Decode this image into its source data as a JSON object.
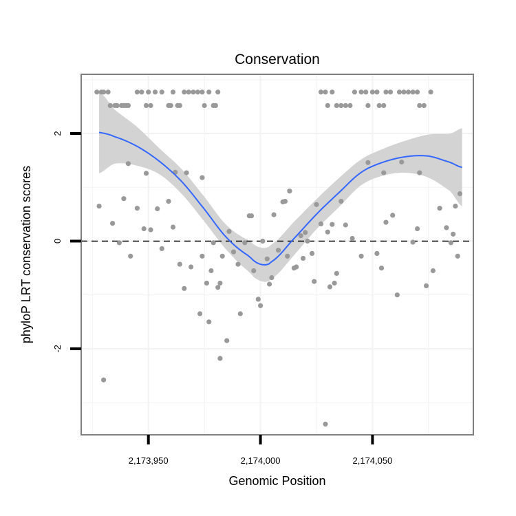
{
  "chart_data": {
    "type": "scatter",
    "title": "Conservation",
    "xlabel": "Genomic Position",
    "ylabel": "phyloP LRT conservation scores",
    "xlim": [
      2173920,
      2174095
    ],
    "ylim": [
      -3.6,
      3.1
    ],
    "x_ticks": [
      {
        "value": 2173950,
        "label": "2,173,950"
      },
      {
        "value": 2174000,
        "label": "2,174,000"
      },
      {
        "value": 2174050,
        "label": "2,174,050"
      }
    ],
    "y_ticks": [
      {
        "value": -2,
        "label": "-2"
      },
      {
        "value": 0,
        "label": "0"
      },
      {
        "value": 2,
        "label": "2"
      }
    ],
    "x_minor_grid": [
      2173925,
      2173975,
      2174025,
      2174075
    ],
    "y_minor_grid": [
      -3,
      -1,
      1,
      3
    ],
    "reference_line": {
      "y": 0,
      "style": "dashed"
    },
    "colors": {
      "points": "#999999",
      "smooth_line": "#3366FF",
      "confidence_band": "#D3D3D3",
      "panel_border": "#7F7F7F",
      "grid": "#F2F2F2",
      "axis_ticks": "#000000"
    },
    "points": [
      [
        2173927,
        2.77
      ],
      [
        2173929,
        2.77
      ],
      [
        2173930,
        2.77
      ],
      [
        2173932,
        2.77
      ],
      [
        2173933,
        2.52
      ],
      [
        2173935,
        2.52
      ],
      [
        2173936,
        2.52
      ],
      [
        2173938,
        2.52
      ],
      [
        2173939,
        2.52
      ],
      [
        2173940,
        2.52
      ],
      [
        2173941,
        2.52
      ],
      [
        2173945,
        2.77
      ],
      [
        2173947,
        2.77
      ],
      [
        2173949,
        2.52
      ],
      [
        2173950,
        2.77
      ],
      [
        2173951,
        2.52
      ],
      [
        2173953,
        2.77
      ],
      [
        2173956,
        2.77
      ],
      [
        2173959,
        2.52
      ],
      [
        2173960,
        2.52
      ],
      [
        2173961,
        2.77
      ],
      [
        2173963,
        2.52
      ],
      [
        2173964,
        2.52
      ],
      [
        2173966,
        2.77
      ],
      [
        2173968,
        2.77
      ],
      [
        2173970,
        2.77
      ],
      [
        2173972,
        2.77
      ],
      [
        2173974,
        2.77
      ],
      [
        2173975,
        2.52
      ],
      [
        2173977,
        2.77
      ],
      [
        2173979,
        2.52
      ],
      [
        2173980,
        2.52
      ],
      [
        2173981,
        2.77
      ],
      [
        2174027,
        2.77
      ],
      [
        2174029,
        2.77
      ],
      [
        2174030,
        2.52
      ],
      [
        2174032,
        2.77
      ],
      [
        2174034,
        2.52
      ],
      [
        2174036,
        2.52
      ],
      [
        2174038,
        2.52
      ],
      [
        2174040,
        2.52
      ],
      [
        2174042,
        2.77
      ],
      [
        2174045,
        2.77
      ],
      [
        2174047,
        2.77
      ],
      [
        2174048,
        2.52
      ],
      [
        2174050,
        2.77
      ],
      [
        2174052,
        2.77
      ],
      [
        2174053,
        2.52
      ],
      [
        2174055,
        2.52
      ],
      [
        2174056,
        2.77
      ],
      [
        2174058,
        2.77
      ],
      [
        2174062,
        2.77
      ],
      [
        2174064,
        2.77
      ],
      [
        2174066,
        2.77
      ],
      [
        2174068,
        2.77
      ],
      [
        2174070,
        2.77
      ],
      [
        2174071,
        2.52
      ],
      [
        2174073,
        2.52
      ],
      [
        2174076,
        2.77
      ],
      [
        2173928,
        0.65
      ],
      [
        2173930,
        -2.58
      ],
      [
        2173934,
        0.33
      ],
      [
        2173937,
        -0.03
      ],
      [
        2173939,
        0.79
      ],
      [
        2173941,
        1.44
      ],
      [
        2173942,
        -0.28
      ],
      [
        2173945,
        0.61
      ],
      [
        2173948,
        0.23
      ],
      [
        2173949,
        1.26
      ],
      [
        2173951,
        0.21
      ],
      [
        2173954,
        0.6
      ],
      [
        2173956,
        -0.14
      ],
      [
        2173959,
        0.74
      ],
      [
        2173961,
        0.26
      ],
      [
        2173962,
        1.28
      ],
      [
        2173964,
        -0.43
      ],
      [
        2173966,
        -0.88
      ],
      [
        2173967,
        1.27
      ],
      [
        2173969,
        -0.48
      ],
      [
        2173973,
        -1.35
      ],
      [
        2173974,
        1.18
      ],
      [
        2173974,
        -0.28
      ],
      [
        2173976,
        -0.78
      ],
      [
        2173977,
        -1.5
      ],
      [
        2173978,
        -0.55
      ],
      [
        2173979,
        -0.03
      ],
      [
        2173981,
        -0.86
      ],
      [
        2173982,
        -0.78
      ],
      [
        2173982,
        -2.18
      ],
      [
        2173983,
        -0.28
      ],
      [
        2173985,
        -1.85
      ],
      [
        2173986,
        0.18
      ],
      [
        2173988,
        -0.2
      ],
      [
        2173990,
        -0.43
      ],
      [
        2173991,
        -1.35
      ],
      [
        2173993,
        -0.03
      ],
      [
        2173995,
        0.47
      ],
      [
        2173996,
        0.47
      ],
      [
        2173997,
        -0.55
      ],
      [
        2173999,
        -1.08
      ],
      [
        2174000,
        -1.2
      ],
      [
        2174001,
        0.0
      ],
      [
        2174003,
        -0.33
      ],
      [
        2174004,
        -0.8
      ],
      [
        2174005,
        -0.68
      ],
      [
        2174006,
        0.49
      ],
      [
        2174008,
        -0.17
      ],
      [
        2174010,
        0.73
      ],
      [
        2174011,
        0.74
      ],
      [
        2174012,
        -0.28
      ],
      [
        2174013,
        0.93
      ],
      [
        2174015,
        -0.5
      ],
      [
        2174016,
        -0.48
      ],
      [
        2174018,
        0.1
      ],
      [
        2174019,
        -0.32
      ],
      [
        2174020,
        0.16
      ],
      [
        2174021,
        0.0
      ],
      [
        2174023,
        -0.23
      ],
      [
        2174024,
        -0.75
      ],
      [
        2174025,
        0.68
      ],
      [
        2174027,
        0.32
      ],
      [
        2174029,
        -3.4
      ],
      [
        2174030,
        0.17
      ],
      [
        2174031,
        -0.85
      ],
      [
        2174032,
        0.31
      ],
      [
        2174033,
        -0.78
      ],
      [
        2174034,
        -0.6
      ],
      [
        2174036,
        0.74
      ],
      [
        2174038,
        0.3
      ],
      [
        2174041,
        0.05
      ],
      [
        2174045,
        -0.28
      ],
      [
        2174048,
        1.46
      ],
      [
        2174052,
        -0.23
      ],
      [
        2174054,
        -0.5
      ],
      [
        2174055,
        1.27
      ],
      [
        2174056,
        0.35
      ],
      [
        2174059,
        0.48
      ],
      [
        2174061,
        -1.0
      ],
      [
        2174063,
        1.47
      ],
      [
        2174068,
        -0.02
      ],
      [
        2174070,
        0.23
      ],
      [
        2174071,
        1.27
      ],
      [
        2174074,
        -0.83
      ],
      [
        2174077,
        -0.55
      ],
      [
        2174080,
        0.61
      ],
      [
        2174083,
        0.25
      ],
      [
        2174085,
        -0.03
      ],
      [
        2174086,
        0.13
      ],
      [
        2174087,
        0.65
      ],
      [
        2174088,
        -0.28
      ],
      [
        2174089,
        0.88
      ]
    ],
    "smooth": {
      "x": [
        2173928,
        2173935,
        2173945,
        2173955,
        2173965,
        2173975,
        2173985,
        2173995,
        2174000,
        2174005,
        2174015,
        2174025,
        2174035,
        2174045,
        2174055,
        2174065,
        2174075,
        2174085,
        2174090
      ],
      "y": [
        2.02,
        1.94,
        1.76,
        1.48,
        1.1,
        0.59,
        0.06,
        -0.28,
        -0.43,
        -0.38,
        0.05,
        0.5,
        0.9,
        1.28,
        1.47,
        1.57,
        1.58,
        1.46,
        1.37
      ],
      "lower": [
        1.26,
        1.44,
        1.4,
        1.24,
        0.87,
        0.36,
        -0.17,
        -0.57,
        -0.74,
        -0.7,
        -0.26,
        0.22,
        0.63,
        1.04,
        1.22,
        1.27,
        1.18,
        0.92,
        0.64
      ],
      "upper": [
        2.78,
        2.44,
        2.12,
        1.72,
        1.33,
        0.82,
        0.29,
        0.01,
        -0.12,
        -0.06,
        0.36,
        0.78,
        1.17,
        1.52,
        1.72,
        1.87,
        1.98,
        2.0,
        2.1
      ]
    }
  }
}
